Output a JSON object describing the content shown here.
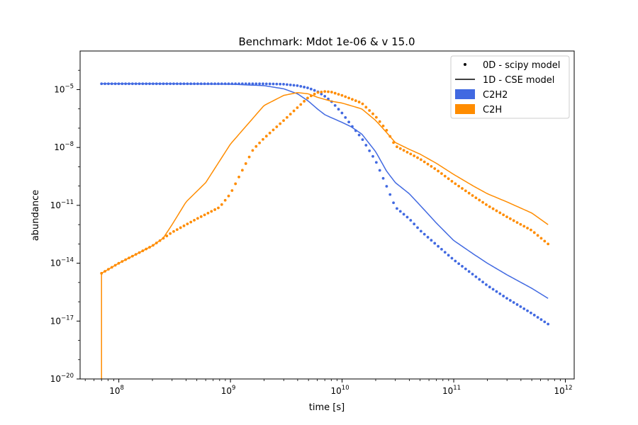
{
  "chart_data": {
    "type": "line",
    "title": "Benchmark: Mdot 1e-06 & v 15.0",
    "xlabel": "time [s]",
    "ylabel": "abundance",
    "xscale": "log",
    "yscale": "log",
    "xlim": [
      45000000.0,
      1200000000000.0
    ],
    "ylim": [
      1e-20,
      0.001
    ],
    "x_ticks": [
      {
        "value": 100000000.0,
        "base": "10",
        "exp": "8"
      },
      {
        "value": 1000000000.0,
        "base": "10",
        "exp": "9"
      },
      {
        "value": 10000000000.0,
        "base": "10",
        "exp": "10"
      },
      {
        "value": 100000000000.0,
        "base": "10",
        "exp": "11"
      },
      {
        "value": 1000000000000.0,
        "base": "10",
        "exp": "12"
      }
    ],
    "y_ticks": [
      {
        "value": 1e-20,
        "base": "10",
        "exp": "−20"
      },
      {
        "value": 1e-17,
        "base": "10",
        "exp": "−17"
      },
      {
        "value": 1e-14,
        "base": "10",
        "exp": "−14"
      },
      {
        "value": 1e-11,
        "base": "10",
        "exp": "−11"
      },
      {
        "value": 1e-08,
        "base": "10",
        "exp": "−8"
      },
      {
        "value": 1e-05,
        "base": "10",
        "exp": "−5"
      }
    ],
    "grid": false,
    "legend": {
      "position": "top-right",
      "entries": [
        {
          "label": "0D - scipy model",
          "kind": "dots",
          "color": "#000000"
        },
        {
          "label": "1D - CSE model",
          "kind": "line",
          "color": "#000000"
        },
        {
          "label": "C2H2",
          "kind": "patch",
          "color": "#4169e1"
        },
        {
          "label": "C2H",
          "kind": "patch",
          "color": "#ff8c00"
        }
      ]
    },
    "series": [
      {
        "name": "C2H2",
        "model": "0D - scipy model",
        "style": "dots",
        "color": "#4169e1",
        "x": [
          70000000.0,
          100000000.0,
          300000000.0,
          1000000000.0,
          2000000000.0,
          3000000000.0,
          4000000000.0,
          5000000000.0,
          6000000000.0,
          7000000000.0,
          8000000000.0,
          10000000000.0,
          12000000000.0,
          15000000000.0,
          20000000000.0,
          25000000000.0,
          30000000000.0,
          40000000000.0,
          50000000000.0,
          70000000000.0,
          100000000000.0,
          150000000000.0,
          200000000000.0,
          300000000000.0,
          500000000000.0,
          700000000000.0
        ],
        "y": [
          2e-05,
          2e-05,
          2e-05,
          2e-05,
          2e-05,
          1.9e-05,
          1.6e-05,
          1.2e-05,
          8e-06,
          4.5e-06,
          2.5e-06,
          6e-07,
          1.5e-07,
          3e-08,
          2e-09,
          1e-10,
          8e-12,
          2e-12,
          5e-13,
          9e-14,
          1.5e-14,
          2.5e-15,
          7e-16,
          1.5e-16,
          2.5e-17,
          7e-18
        ]
      },
      {
        "name": "C2H",
        "model": "0D - scipy model",
        "style": "dots",
        "color": "#ff8c00",
        "x": [
          70000000.0,
          100000000.0,
          200000000.0,
          300000000.0,
          500000000.0,
          800000000.0,
          1000000000.0,
          1300000000.0,
          1600000000.0,
          2000000000.0,
          3000000000.0,
          4000000000.0,
          5000000000.0,
          6000000000.0,
          7000000000.0,
          8000000000.0,
          10000000000.0,
          15000000000.0,
          20000000000.0,
          25000000000.0,
          30000000000.0,
          40000000000.0,
          50000000000.0,
          70000000000.0,
          100000000000.0,
          150000000000.0,
          200000000000.0,
          300000000000.0,
          500000000000.0,
          700000000000.0
        ],
        "y": [
          3e-15,
          1e-14,
          8e-14,
          4e-13,
          2e-12,
          8e-12,
          4e-11,
          8e-10,
          8e-09,
          3e-08,
          2.5e-07,
          1.2e-06,
          4e-06,
          7e-06,
          8e-06,
          7.5e-06,
          5e-06,
          2e-06,
          4e-07,
          8e-08,
          1.2e-08,
          5e-09,
          2.5e-09,
          7e-10,
          1.5e-10,
          3e-11,
          1e-11,
          2.5e-12,
          5e-13,
          1e-13
        ]
      },
      {
        "name": "C2H2",
        "model": "1D - CSE model",
        "style": "line",
        "color": "#4169e1",
        "x": [
          70000000.0,
          100000000.0,
          300000000.0,
          1000000000.0,
          2000000000.0,
          3000000000.0,
          4000000000.0,
          5000000000.0,
          6000000000.0,
          7000000000.0,
          8000000000.0,
          10000000000.0,
          12000000000.0,
          15000000000.0,
          20000000000.0,
          25000000000.0,
          30000000000.0,
          40000000000.0,
          50000000000.0,
          70000000000.0,
          100000000000.0,
          150000000000.0,
          200000000000.0,
          300000000000.0,
          500000000000.0,
          700000000000.0
        ],
        "y": [
          2e-05,
          2e-05,
          2e-05,
          1.9e-05,
          1.6e-05,
          1.1e-05,
          6e-06,
          2.5e-06,
          1e-06,
          5e-07,
          3.5e-07,
          2e-07,
          1.2e-07,
          5e-08,
          6e-09,
          6e-10,
          1.5e-10,
          4e-11,
          1e-11,
          1.2e-12,
          1.5e-13,
          3e-14,
          1e-14,
          2.5e-15,
          5e-16,
          1.5e-16
        ]
      },
      {
        "name": "C2H",
        "model": "1D - CSE model",
        "style": "line",
        "color": "#ff8c00",
        "x": [
          70000000.0,
          100000000.0,
          200000000.0,
          250000000.0,
          300000000.0,
          400000000.0,
          600000000.0,
          1000000000.0,
          2000000000.0,
          3000000000.0,
          4000000000.0,
          5000000000.0,
          6000000000.0,
          8000000000.0,
          10000000000.0,
          15000000000.0,
          20000000000.0,
          25000000000.0,
          30000000000.0,
          40000000000.0,
          50000000000.0,
          70000000000.0,
          100000000000.0,
          150000000000.0,
          200000000000.0,
          300000000000.0,
          500000000000.0,
          700000000000.0
        ],
        "y": [
          3e-15,
          1e-14,
          8e-14,
          2e-13,
          1e-12,
          1.5e-11,
          1.5e-10,
          1.5e-08,
          1.5e-06,
          5e-06,
          7e-06,
          6e-06,
          4e-06,
          2.5e-06,
          2e-06,
          1e-06,
          2.5e-07,
          6e-08,
          1.8e-08,
          8e-09,
          4.5e-09,
          1.5e-09,
          4e-10,
          1e-10,
          4e-11,
          1.5e-11,
          4e-12,
          1e-12
        ]
      }
    ]
  }
}
